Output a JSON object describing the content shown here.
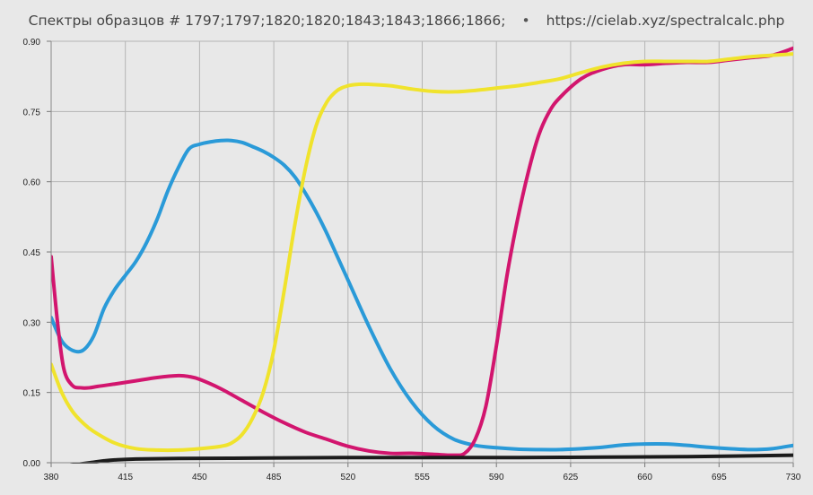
{
  "title": {
    "text": "Спектры образцов # 1797;1797;1820;1820;1843;1843;1866;1866;",
    "separator": "•",
    "url": "https://cielab.xyz/spectralcalc.php"
  },
  "chart_data": {
    "type": "line",
    "title": "Спектры образцов # 1797;1797;1820;1820;1843;1843;1866;1866;",
    "xlabel": "",
    "ylabel": "",
    "xlim": [
      380,
      730
    ],
    "ylim": [
      0,
      0.9
    ],
    "x_ticks": [
      380,
      415,
      450,
      485,
      520,
      555,
      590,
      625,
      660,
      695,
      730
    ],
    "y_ticks": [
      "0.00",
      "0.15",
      "0.30",
      "0.45",
      "0.60",
      "0.75",
      "0.90"
    ],
    "grid": true,
    "series": [
      {
        "color": "#2a9ad8",
        "x": [
          380,
          385,
          390,
          395,
          400,
          405,
          410,
          415,
          420,
          425,
          430,
          435,
          440,
          445,
          450,
          455,
          460,
          465,
          470,
          475,
          480,
          485,
          490,
          495,
          500,
          505,
          510,
          515,
          520,
          530,
          540,
          550,
          560,
          570,
          580,
          590,
          600,
          610,
          620,
          630,
          640,
          650,
          660,
          670,
          680,
          690,
          700,
          710,
          720,
          730
        ],
        "y": [
          0.31,
          0.26,
          0.24,
          0.24,
          0.27,
          0.33,
          0.37,
          0.4,
          0.43,
          0.47,
          0.52,
          0.58,
          0.63,
          0.67,
          0.68,
          0.685,
          0.688,
          0.688,
          0.684,
          0.675,
          0.665,
          0.652,
          0.635,
          0.61,
          0.575,
          0.535,
          0.49,
          0.44,
          0.39,
          0.29,
          0.2,
          0.13,
          0.08,
          0.05,
          0.037,
          0.032,
          0.029,
          0.028,
          0.028,
          0.03,
          0.033,
          0.038,
          0.04,
          0.04,
          0.037,
          0.033,
          0.03,
          0.028,
          0.03,
          0.037
        ]
      },
      {
        "color": "#d2156e",
        "x": [
          380,
          383,
          386,
          390,
          394,
          398,
          402,
          410,
          420,
          430,
          440,
          445,
          450,
          460,
          470,
          480,
          490,
          500,
          510,
          520,
          530,
          540,
          550,
          560,
          570,
          575,
          580,
          585,
          590,
          595,
          600,
          605,
          610,
          615,
          620,
          630,
          640,
          650,
          660,
          670,
          680,
          690,
          700,
          710,
          720,
          730
        ],
        "y": [
          0.44,
          0.3,
          0.2,
          0.165,
          0.16,
          0.16,
          0.163,
          0.168,
          0.175,
          0.182,
          0.186,
          0.184,
          0.178,
          0.158,
          0.133,
          0.108,
          0.085,
          0.065,
          0.05,
          0.035,
          0.025,
          0.02,
          0.02,
          0.018,
          0.016,
          0.02,
          0.05,
          0.12,
          0.25,
          0.4,
          0.52,
          0.62,
          0.7,
          0.75,
          0.78,
          0.82,
          0.84,
          0.85,
          0.85,
          0.853,
          0.855,
          0.855,
          0.86,
          0.865,
          0.87,
          0.885
        ]
      },
      {
        "color": "#f0e32c",
        "x": [
          380,
          385,
          390,
          395,
          400,
          410,
          420,
          430,
          440,
          450,
          460,
          465,
          470,
          475,
          480,
          485,
          490,
          495,
          500,
          505,
          510,
          515,
          520,
          525,
          530,
          540,
          550,
          560,
          570,
          580,
          590,
          600,
          610,
          620,
          630,
          640,
          650,
          660,
          670,
          680,
          690,
          700,
          710,
          720,
          730
        ],
        "y": [
          0.21,
          0.15,
          0.11,
          0.085,
          0.067,
          0.042,
          0.03,
          0.027,
          0.027,
          0.03,
          0.035,
          0.042,
          0.06,
          0.095,
          0.15,
          0.24,
          0.37,
          0.51,
          0.63,
          0.72,
          0.77,
          0.795,
          0.805,
          0.808,
          0.808,
          0.805,
          0.798,
          0.793,
          0.792,
          0.795,
          0.8,
          0.805,
          0.812,
          0.82,
          0.833,
          0.845,
          0.853,
          0.857,
          0.857,
          0.857,
          0.857,
          0.862,
          0.867,
          0.87,
          0.873
        ]
      },
      {
        "color": "#1b1b1b",
        "x": [
          380,
          390,
          400,
          405,
          410,
          420,
          440,
          480,
          520,
          560,
          600,
          640,
          680,
          730
        ],
        "y": [
          -0.012,
          -0.005,
          0.001,
          0.004,
          0.006,
          0.008,
          0.009,
          0.01,
          0.011,
          0.011,
          0.011,
          0.012,
          0.013,
          0.016
        ]
      }
    ]
  }
}
